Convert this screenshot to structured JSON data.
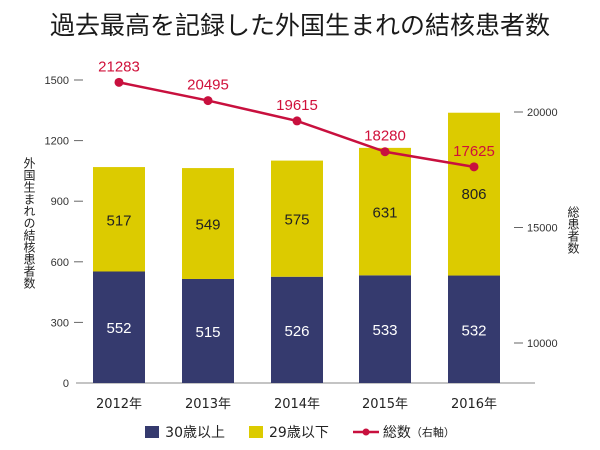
{
  "chart_data": {
    "type": "bar",
    "title": "過去最高を記録した外国生まれの結核患者数",
    "categories": [
      "2012年",
      "2013年",
      "2014年",
      "2015年",
      "2016年"
    ],
    "series": [
      {
        "name": "30歳以上",
        "type": "bar",
        "stack": "a",
        "axis": "left",
        "color": "#353a6e",
        "values": [
          552,
          515,
          526,
          533,
          532
        ]
      },
      {
        "name": "29歳以下",
        "type": "bar",
        "stack": "a",
        "axis": "left",
        "color": "#dccb00",
        "values": [
          517,
          549,
          575,
          631,
          806
        ]
      },
      {
        "name": "総数",
        "type": "line",
        "axis": "right",
        "color": "#c8103e",
        "values": [
          21283,
          20495,
          19615,
          18280,
          17625
        ]
      }
    ],
    "ylabel": "外国生まれの結核患者数",
    "y2label": "総患者数",
    "ylim": [
      0,
      1500
    ],
    "yticks": [
      "0",
      "300",
      "600",
      "900",
      "1200",
      "1500"
    ],
    "y2ticks": [
      "10000",
      "15000",
      "20000"
    ],
    "y2_tick_values": [
      10000,
      15000,
      20000
    ],
    "y_tick_values": [
      0,
      300,
      600,
      900,
      1200,
      1500
    ],
    "legend": {
      "position": "bottom",
      "items": [
        "30歳以上",
        "29歳以下",
        "総数"
      ],
      "line_suffix": "（右軸）"
    },
    "grid": false
  }
}
